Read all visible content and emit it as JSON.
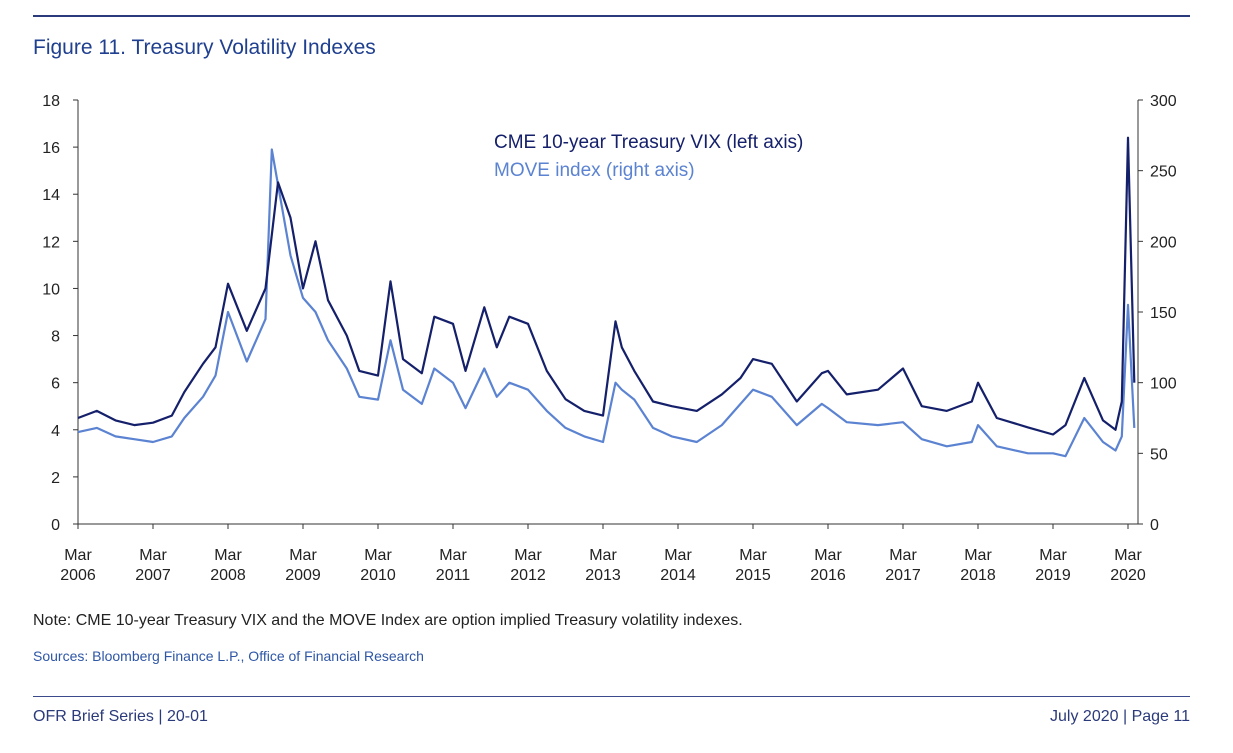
{
  "header": {
    "figure_title": "Figure 11. Treasury Volatility Indexes"
  },
  "chart_data": {
    "type": "line",
    "title": "Figure 11. Treasury Volatility Indexes",
    "x_start_year": 2006,
    "x_ticks": [
      {
        "month": "Mar",
        "year": "2006"
      },
      {
        "month": "Mar",
        "year": "2007"
      },
      {
        "month": "Mar",
        "year": "2008"
      },
      {
        "month": "Mar",
        "year": "2009"
      },
      {
        "month": "Mar",
        "year": "2010"
      },
      {
        "month": "Mar",
        "year": "2011"
      },
      {
        "month": "Mar",
        "year": "2012"
      },
      {
        "month": "Mar",
        "year": "2013"
      },
      {
        "month": "Mar",
        "year": "2014"
      },
      {
        "month": "Mar",
        "year": "2015"
      },
      {
        "month": "Mar",
        "year": "2016"
      },
      {
        "month": "Mar",
        "year": "2017"
      },
      {
        "month": "Mar",
        "year": "2018"
      },
      {
        "month": "Mar",
        "year": "2019"
      },
      {
        "month": "Mar",
        "year": "2020"
      }
    ],
    "y_left": {
      "range": [
        0,
        18
      ],
      "ticks": [
        0,
        2,
        4,
        6,
        8,
        10,
        12,
        14,
        16,
        18
      ]
    },
    "y_right": {
      "range": [
        0,
        300
      ],
      "ticks": [
        0,
        50,
        100,
        150,
        200,
        250,
        300
      ]
    },
    "grid": false,
    "legend_position": "top-center",
    "series": [
      {
        "name": "CME 10-year Treasury VIX (left axis)",
        "axis": "left",
        "color": "#15206b",
        "x": [
          "2006-03",
          "2006-06",
          "2006-09",
          "2006-12",
          "2007-03",
          "2007-06",
          "2007-08",
          "2007-11",
          "2008-01",
          "2008-03",
          "2008-06",
          "2008-09",
          "2008-11",
          "2009-01",
          "2009-03",
          "2009-05",
          "2009-07",
          "2009-10",
          "2009-12",
          "2010-03",
          "2010-05",
          "2010-07",
          "2010-10",
          "2010-12",
          "2011-03",
          "2011-05",
          "2011-08",
          "2011-10",
          "2011-12",
          "2012-03",
          "2012-06",
          "2012-09",
          "2012-12",
          "2013-03",
          "2013-05",
          "2013-06",
          "2013-08",
          "2013-11",
          "2014-02",
          "2014-06",
          "2014-10",
          "2015-01",
          "2015-03",
          "2015-06",
          "2015-10",
          "2016-02",
          "2016-03",
          "2016-06",
          "2016-11",
          "2017-03",
          "2017-06",
          "2017-10",
          "2018-02",
          "2018-03",
          "2018-06",
          "2018-11",
          "2019-03",
          "2019-05",
          "2019-08",
          "2019-11",
          "2020-01",
          "2020-02",
          "2020-03",
          "2020-04"
        ],
        "values": [
          4.5,
          4.8,
          4.4,
          4.2,
          4.3,
          4.6,
          5.6,
          6.8,
          7.5,
          10.2,
          8.2,
          10.0,
          14.5,
          13.0,
          10.0,
          12.0,
          9.5,
          8.0,
          6.5,
          6.3,
          10.3,
          7.0,
          6.4,
          8.8,
          8.5,
          6.5,
          9.2,
          7.5,
          8.8,
          8.5,
          6.5,
          5.3,
          4.8,
          4.6,
          8.6,
          7.5,
          6.5,
          5.2,
          5.0,
          4.8,
          5.5,
          6.2,
          7.0,
          6.8,
          5.2,
          6.4,
          6.5,
          5.5,
          5.7,
          6.6,
          5.0,
          4.8,
          5.2,
          6.0,
          4.5,
          4.1,
          3.8,
          4.2,
          6.2,
          4.4,
          4.0,
          5.2,
          16.4,
          6.0
        ]
      },
      {
        "name": "MOVE index (right axis)",
        "axis": "right",
        "color": "#5b83d1",
        "x": [
          "2006-03",
          "2006-06",
          "2006-09",
          "2006-12",
          "2007-03",
          "2007-06",
          "2007-08",
          "2007-11",
          "2008-01",
          "2008-03",
          "2008-06",
          "2008-09",
          "2008-10",
          "2009-01",
          "2009-03",
          "2009-05",
          "2009-07",
          "2009-10",
          "2009-12",
          "2010-03",
          "2010-05",
          "2010-07",
          "2010-10",
          "2010-12",
          "2011-03",
          "2011-05",
          "2011-08",
          "2011-10",
          "2011-12",
          "2012-03",
          "2012-06",
          "2012-09",
          "2012-12",
          "2013-03",
          "2013-05",
          "2013-06",
          "2013-08",
          "2013-11",
          "2014-02",
          "2014-06",
          "2014-10",
          "2015-01",
          "2015-03",
          "2015-06",
          "2015-10",
          "2016-02",
          "2016-03",
          "2016-06",
          "2016-11",
          "2017-03",
          "2017-06",
          "2017-10",
          "2018-02",
          "2018-03",
          "2018-06",
          "2018-11",
          "2019-03",
          "2019-05",
          "2019-08",
          "2019-11",
          "2020-01",
          "2020-02",
          "2020-03",
          "2020-04"
        ],
        "values": [
          65,
          68,
          62,
          60,
          58,
          62,
          75,
          90,
          105,
          150,
          115,
          145,
          265,
          190,
          160,
          150,
          130,
          110,
          90,
          88,
          130,
          95,
          85,
          110,
          100,
          82,
          110,
          90,
          100,
          95,
          80,
          68,
          62,
          58,
          100,
          95,
          88,
          68,
          62,
          58,
          70,
          85,
          95,
          90,
          70,
          85,
          82,
          72,
          70,
          72,
          60,
          55,
          58,
          70,
          55,
          50,
          50,
          48,
          75,
          58,
          52,
          62,
          155,
          68
        ]
      }
    ]
  },
  "note": "Note: CME 10-year Treasury VIX and the MOVE Index are option implied Treasury volatility indexes.",
  "sources": "Sources: Bloomberg Finance L.P., Office of Financial Research",
  "footer": {
    "left": "OFR Brief Series | 20-01",
    "right": "July 2020 | Page 11"
  }
}
